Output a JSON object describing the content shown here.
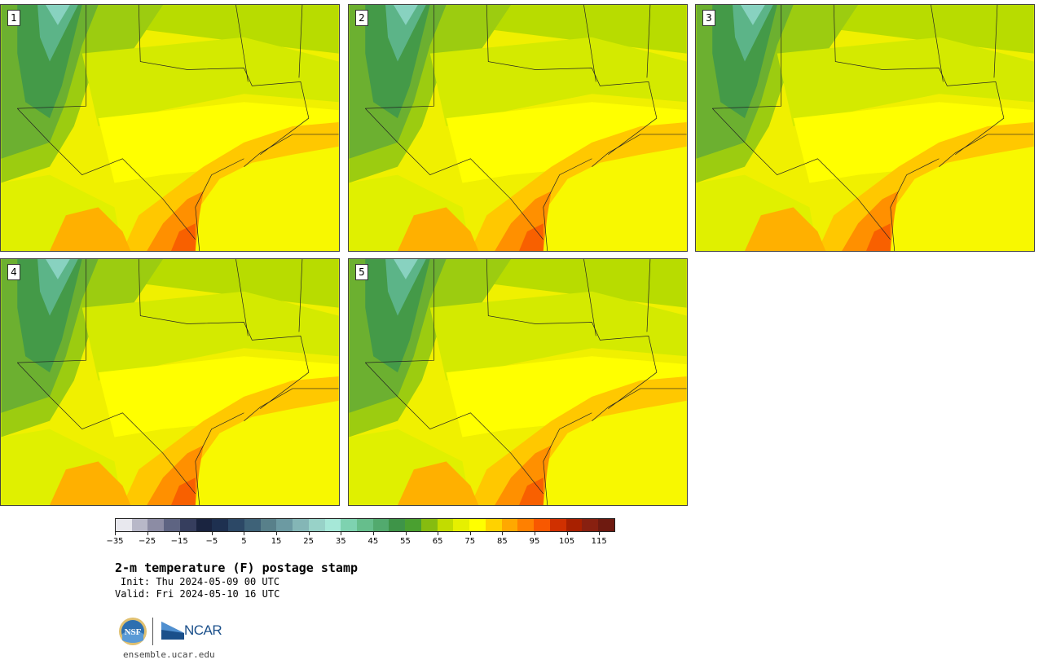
{
  "panels": [
    {
      "label": "1"
    },
    {
      "label": "2"
    },
    {
      "label": "3"
    },
    {
      "label": "4"
    },
    {
      "label": "5"
    }
  ],
  "colorbar": {
    "colors": [
      "#e8e8ee",
      "#b8b8c8",
      "#8c8ca4",
      "#5e6482",
      "#363e5e",
      "#1a2440",
      "#1e3050",
      "#2c4866",
      "#3e6278",
      "#58808a",
      "#6c9aa2",
      "#84b6b6",
      "#98d2c8",
      "#a6e8d8",
      "#7ed2b0",
      "#66be8c",
      "#52aa6e",
      "#3e9448",
      "#4aa030",
      "#86bc10",
      "#c2dc00",
      "#e6f000",
      "#ffff00",
      "#ffd200",
      "#ffa800",
      "#ff8000",
      "#f85800",
      "#d03000",
      "#a82000",
      "#882010",
      "#6e1a10"
    ],
    "ticks": [
      "−35",
      "−25",
      "−15",
      "−5",
      "5",
      "15",
      "25",
      "35",
      "45",
      "55",
      "65",
      "75",
      "85",
      "95",
      "105",
      "115"
    ]
  },
  "title": "2-m temperature (F) postage stamp",
  "init": "Init: Thu 2024-05-09 00 UTC",
  "valid": "Valid: Fri 2024-05-10 16 UTC",
  "logos": {
    "nsf": "NSF",
    "ncar": "NCAR"
  },
  "url": "ensemble.ucar.edu"
}
